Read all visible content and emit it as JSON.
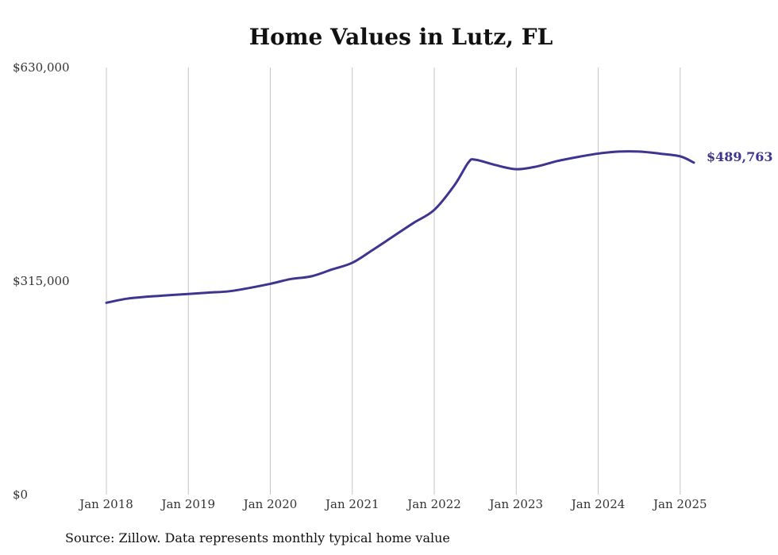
{
  "chart_data": {
    "type": "line",
    "title": "Home Values in Lutz, FL",
    "source": "Source: Zillow. Data represents monthly typical home value",
    "ylim": [
      0,
      630000
    ],
    "xlim": [
      "2018-01",
      "2025-03"
    ],
    "y_ticks": [
      0,
      315000,
      630000
    ],
    "y_tick_labels": [
      "$0",
      "$315,000",
      "$630,000"
    ],
    "x_ticks": [
      "2018-01",
      "2019-01",
      "2020-01",
      "2021-01",
      "2022-01",
      "2023-01",
      "2024-01",
      "2025-01"
    ],
    "x_tick_labels": [
      "Jan 2018",
      "Jan 2019",
      "Jan 2020",
      "Jan 2021",
      "Jan 2022",
      "Jan 2023",
      "Jan 2024",
      "Jan 2025"
    ],
    "grid": "vertical",
    "line_color": "#3d3590",
    "end_label": "$489,763",
    "series": [
      {
        "x": [
          "2018-01",
          "2018-04",
          "2018-07",
          "2018-10",
          "2019-01",
          "2019-04",
          "2019-07",
          "2019-10",
          "2020-01",
          "2020-04",
          "2020-07",
          "2020-10",
          "2021-01",
          "2021-04",
          "2021-07",
          "2021-10",
          "2022-01",
          "2022-04",
          "2022-06",
          "2022-07",
          "2022-10",
          "2023-01",
          "2023-04",
          "2023-07",
          "2023-10",
          "2024-01",
          "2024-04",
          "2024-07",
          "2024-10",
          "2025-01",
          "2025-03"
        ],
        "values": [
          283000,
          289000,
          292000,
          294000,
          296000,
          298000,
          300000,
          305000,
          311000,
          318000,
          322000,
          332000,
          342000,
          361000,
          381000,
          401000,
          420000,
          457000,
          490000,
          494000,
          486000,
          480000,
          484000,
          492000,
          498000,
          503000,
          506000,
          506000,
          503000,
          499000,
          489763
        ]
      }
    ]
  }
}
